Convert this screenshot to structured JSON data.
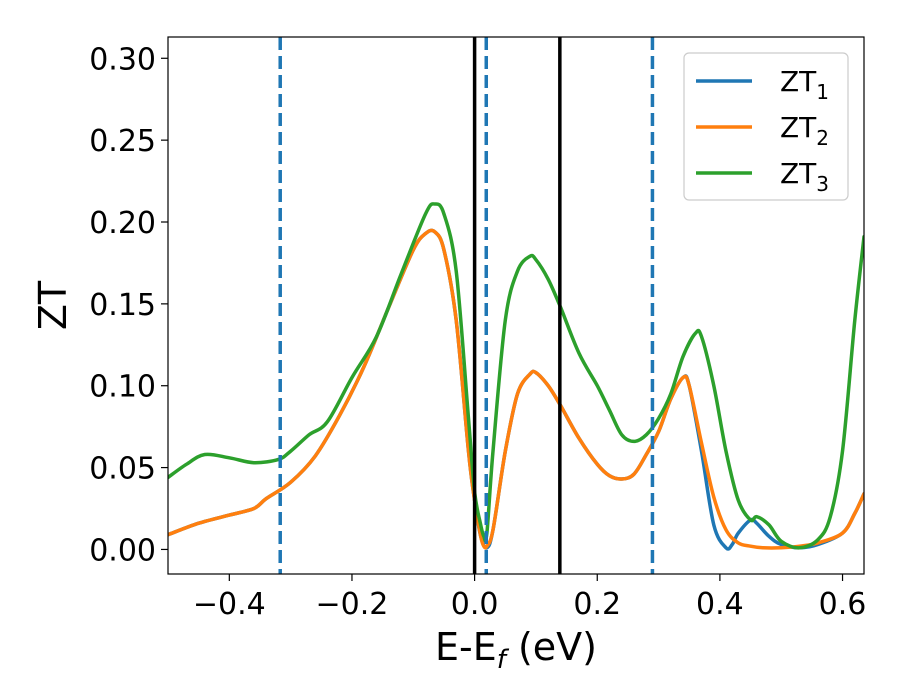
{
  "chart_data": {
    "type": "line",
    "xlabel": {
      "main": "E-E",
      "sub": "f",
      "suffix": " (eV)"
    },
    "ylabel": "ZT",
    "xlim": [
      -0.5,
      0.635
    ],
    "ylim": [
      -0.015,
      0.313
    ],
    "x_ticks": [
      -0.4,
      -0.2,
      0.0,
      0.2,
      0.4,
      0.6
    ],
    "x_tick_labels": [
      "−0.4",
      "−0.2",
      "0.0",
      "0.2",
      "0.4",
      "0.6"
    ],
    "y_ticks": [
      0.0,
      0.05,
      0.1,
      0.15,
      0.2,
      0.25,
      0.3
    ],
    "y_tick_labels": [
      "0.00",
      "0.05",
      "0.10",
      "0.15",
      "0.20",
      "0.25",
      "0.30"
    ],
    "grid": false,
    "legend_position": "top-right",
    "series": [
      {
        "name": "ZT",
        "sub": "1",
        "color": "#1f77b4",
        "x": [
          -0.5,
          -0.45,
          -0.4,
          -0.36,
          -0.34,
          -0.3,
          -0.26,
          -0.22,
          -0.18,
          -0.14,
          -0.1,
          -0.08,
          -0.065,
          -0.05,
          -0.03,
          -0.01,
          0.0,
          0.01,
          0.02,
          0.03,
          0.05,
          0.07,
          0.09,
          0.1,
          0.12,
          0.14,
          0.17,
          0.2,
          0.22,
          0.24,
          0.26,
          0.28,
          0.3,
          0.32,
          0.34,
          0.35,
          0.37,
          0.39,
          0.41,
          0.42,
          0.43,
          0.45,
          0.46,
          0.48,
          0.5,
          0.53,
          0.56,
          0.6,
          0.62,
          0.635
        ],
        "y": [
          0.009,
          0.016,
          0.021,
          0.025,
          0.031,
          0.041,
          0.057,
          0.082,
          0.112,
          0.148,
          0.183,
          0.193,
          0.194,
          0.183,
          0.14,
          0.06,
          0.03,
          0.008,
          0.001,
          0.012,
          0.06,
          0.095,
          0.107,
          0.108,
          0.1,
          0.088,
          0.068,
          0.052,
          0.045,
          0.043,
          0.046,
          0.058,
          0.072,
          0.092,
          0.105,
          0.1,
          0.06,
          0.015,
          0.001,
          0.003,
          0.01,
          0.018,
          0.016,
          0.008,
          0.003,
          0.001,
          0.003,
          0.01,
          0.022,
          0.034
        ]
      },
      {
        "name": "ZT",
        "sub": "2",
        "color": "#ff7f0e",
        "x": [
          -0.5,
          -0.45,
          -0.4,
          -0.36,
          -0.34,
          -0.3,
          -0.26,
          -0.22,
          -0.18,
          -0.14,
          -0.1,
          -0.08,
          -0.065,
          -0.05,
          -0.03,
          -0.01,
          0.0,
          0.01,
          0.015,
          0.02,
          0.03,
          0.05,
          0.07,
          0.09,
          0.1,
          0.12,
          0.14,
          0.17,
          0.2,
          0.22,
          0.24,
          0.26,
          0.28,
          0.3,
          0.32,
          0.34,
          0.35,
          0.37,
          0.39,
          0.41,
          0.43,
          0.45,
          0.47,
          0.5,
          0.53,
          0.56,
          0.6,
          0.62,
          0.635
        ],
        "y": [
          0.009,
          0.016,
          0.021,
          0.025,
          0.031,
          0.041,
          0.057,
          0.082,
          0.112,
          0.148,
          0.183,
          0.193,
          0.194,
          0.183,
          0.14,
          0.06,
          0.03,
          0.008,
          0.002,
          0.002,
          0.012,
          0.06,
          0.095,
          0.107,
          0.108,
          0.1,
          0.088,
          0.068,
          0.052,
          0.045,
          0.043,
          0.046,
          0.058,
          0.072,
          0.092,
          0.105,
          0.1,
          0.065,
          0.032,
          0.012,
          0.004,
          0.002,
          0.001,
          0.001,
          0.002,
          0.004,
          0.01,
          0.022,
          0.034
        ]
      },
      {
        "name": "ZT",
        "sub": "3",
        "color": "#2ca02c",
        "x": [
          -0.5,
          -0.47,
          -0.44,
          -0.4,
          -0.36,
          -0.32,
          -0.3,
          -0.27,
          -0.24,
          -0.2,
          -0.16,
          -0.12,
          -0.08,
          -0.065,
          -0.05,
          -0.03,
          -0.01,
          0.0,
          0.01,
          0.015,
          0.02,
          0.03,
          0.05,
          0.07,
          0.09,
          0.1,
          0.12,
          0.14,
          0.17,
          0.2,
          0.22,
          0.24,
          0.26,
          0.28,
          0.3,
          0.32,
          0.34,
          0.36,
          0.37,
          0.39,
          0.41,
          0.43,
          0.45,
          0.46,
          0.48,
          0.5,
          0.53,
          0.56,
          0.58,
          0.6,
          0.62,
          0.635
        ],
        "y": [
          0.044,
          0.052,
          0.058,
          0.056,
          0.053,
          0.055,
          0.06,
          0.07,
          0.078,
          0.105,
          0.13,
          0.168,
          0.205,
          0.211,
          0.205,
          0.17,
          0.08,
          0.035,
          0.015,
          0.008,
          0.01,
          0.06,
          0.14,
          0.17,
          0.179,
          0.177,
          0.165,
          0.148,
          0.12,
          0.1,
          0.085,
          0.07,
          0.066,
          0.07,
          0.08,
          0.095,
          0.118,
          0.132,
          0.13,
          0.1,
          0.06,
          0.03,
          0.018,
          0.02,
          0.015,
          0.005,
          0.001,
          0.006,
          0.02,
          0.06,
          0.14,
          0.191
        ]
      }
    ],
    "vertical_lines": [
      {
        "x": -0.317,
        "style": "dashed",
        "color": "#1f77b4"
      },
      {
        "x": 0.019,
        "style": "dashed",
        "color": "#1f77b4"
      },
      {
        "x": 0.29,
        "style": "dashed",
        "color": "#1f77b4"
      },
      {
        "x": 0.0,
        "style": "solid",
        "color": "#000000"
      },
      {
        "x": 0.139,
        "style": "solid",
        "color": "#000000"
      }
    ]
  }
}
